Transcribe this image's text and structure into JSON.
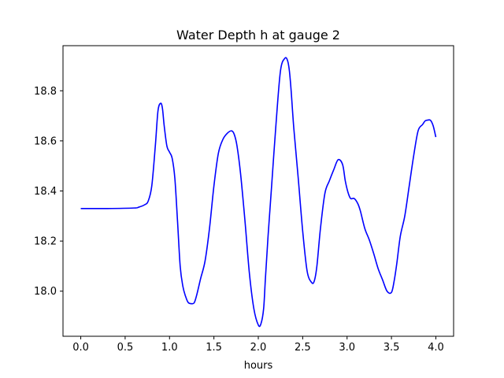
{
  "chart_data": {
    "type": "line",
    "title": "Water Depth h at gauge 2",
    "xlabel": "hours",
    "ylabel": "",
    "xlim": [
      -0.2,
      4.2
    ],
    "ylim": [
      17.82,
      18.98
    ],
    "xticks": [
      0.0,
      0.5,
      1.0,
      1.5,
      2.0,
      2.5,
      3.0,
      3.5,
      4.0
    ],
    "xtick_labels": [
      "0.0",
      "0.5",
      "1.0",
      "1.5",
      "2.0",
      "2.5",
      "3.0",
      "3.5",
      "4.0"
    ],
    "yticks": [
      18.0,
      18.2,
      18.4,
      18.6,
      18.8
    ],
    "ytick_labels": [
      "18.0",
      "18.2",
      "18.4",
      "18.6",
      "18.8"
    ],
    "grid": false,
    "series": [
      {
        "name": "",
        "color": "#0000ff",
        "x": [
          0.0,
          0.3,
          0.6,
          0.65,
          0.72,
          0.76,
          0.8,
          0.84,
          0.87,
          0.9,
          0.92,
          0.94,
          0.97,
          1.0,
          1.03,
          1.06,
          1.09,
          1.12,
          1.15,
          1.18,
          1.21,
          1.25,
          1.28,
          1.31,
          1.35,
          1.4,
          1.45,
          1.5,
          1.55,
          1.6,
          1.65,
          1.7,
          1.73,
          1.76,
          1.8,
          1.85,
          1.9,
          1.95,
          2.0,
          2.03,
          2.06,
          2.08,
          2.11,
          2.15,
          2.2,
          2.25,
          2.3,
          2.33,
          2.35,
          2.37,
          2.4,
          2.45,
          2.5,
          2.55,
          2.6,
          2.63,
          2.66,
          2.7,
          2.75,
          2.8,
          2.85,
          2.9,
          2.95,
          2.98,
          3.01,
          3.04,
          3.08,
          3.12,
          3.15,
          3.2,
          3.25,
          3.3,
          3.35,
          3.4,
          3.45,
          3.5,
          3.53,
          3.56,
          3.6,
          3.65,
          3.7,
          3.75,
          3.8,
          3.85,
          3.88,
          3.91,
          3.94,
          3.97,
          4.0
        ],
        "y": [
          18.33,
          18.33,
          18.332,
          18.335,
          18.345,
          18.36,
          18.42,
          18.58,
          18.72,
          18.75,
          18.73,
          18.66,
          18.58,
          18.555,
          18.53,
          18.45,
          18.28,
          18.1,
          18.02,
          17.98,
          17.955,
          17.95,
          17.955,
          17.99,
          18.05,
          18.12,
          18.25,
          18.42,
          18.55,
          18.605,
          18.63,
          18.64,
          18.625,
          18.58,
          18.47,
          18.28,
          18.07,
          17.93,
          17.865,
          17.87,
          17.93,
          18.05,
          18.22,
          18.42,
          18.67,
          18.88,
          18.93,
          18.92,
          18.88,
          18.8,
          18.65,
          18.45,
          18.24,
          18.08,
          18.035,
          18.04,
          18.1,
          18.25,
          18.39,
          18.44,
          18.485,
          18.525,
          18.505,
          18.44,
          18.395,
          18.37,
          18.37,
          18.35,
          18.32,
          18.25,
          18.205,
          18.15,
          18.09,
          18.045,
          18.0,
          17.995,
          18.04,
          18.11,
          18.22,
          18.3,
          18.42,
          18.54,
          18.64,
          18.665,
          18.68,
          18.683,
          18.682,
          18.66,
          18.615
        ]
      }
    ]
  }
}
